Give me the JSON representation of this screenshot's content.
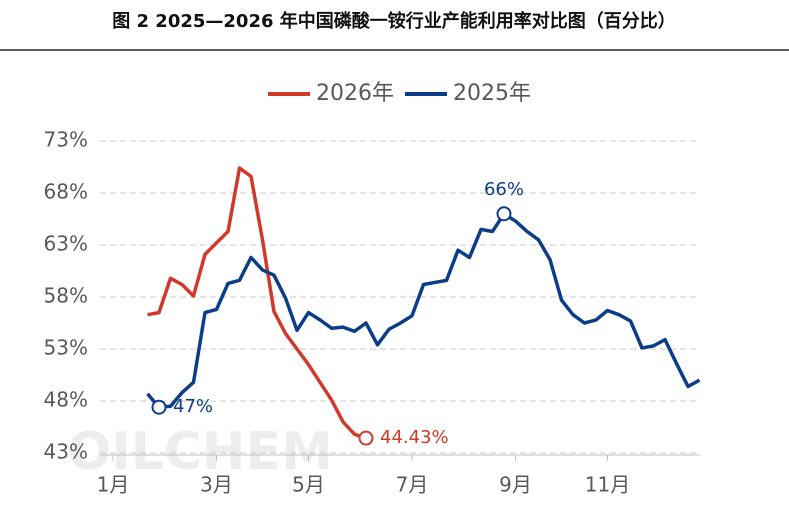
{
  "chart_data": {
    "type": "line",
    "title": "图 2 2025—2026 年中国磷酸一铵行业产能利用率对比图（百分比）",
    "watermark": "OILCHEM",
    "categories": [
      "1月",
      null,
      null,
      null,
      null,
      null,
      null,
      null,
      null,
      "3月",
      null,
      null,
      null,
      null,
      null,
      null,
      null,
      "5月",
      null,
      null,
      null,
      null,
      null,
      null,
      null,
      null,
      "7月",
      null,
      null,
      null,
      null,
      null,
      null,
      null,
      null,
      "9月",
      null,
      null,
      null,
      null,
      null,
      null,
      null,
      "11月",
      null,
      null,
      null,
      null,
      null,
      null,
      null,
      null
    ],
    "series": [
      {
        "name": "2026年",
        "color": "#d0392b",
        "values": [
          null,
          null,
          null,
          56.3,
          56.5,
          59.8,
          59.2,
          58.1,
          62.1,
          63.2,
          64.3,
          70.4,
          69.6,
          63.5,
          56.6,
          54.5,
          53.0,
          51.5,
          49.8,
          48.1,
          46.0,
          44.8,
          44.43,
          null,
          null,
          null,
          null,
          null,
          null,
          null,
          null,
          null,
          null,
          null,
          null,
          null,
          null,
          null,
          null,
          null,
          null,
          null,
          null,
          null,
          null,
          null,
          null,
          null,
          null,
          null,
          null,
          null
        ],
        "value_labels": [
          null,
          null,
          null,
          null,
          null,
          null,
          null,
          null,
          null,
          null,
          null,
          null,
          null,
          null,
          null,
          null,
          null,
          null,
          null,
          null,
          null,
          null,
          "44.43%",
          null,
          null,
          null,
          null,
          null,
          null,
          null,
          null,
          null,
          null,
          null,
          null,
          null,
          null,
          null,
          null,
          null,
          null,
          null,
          null,
          null,
          null,
          null,
          null,
          null,
          null,
          null,
          null,
          null
        ]
      },
      {
        "name": "2025年",
        "color": "#0d3d88",
        "values": [
          null,
          null,
          null,
          48.7,
          47.4,
          47.5,
          48.8,
          49.8,
          56.5,
          56.8,
          59.3,
          59.6,
          61.8,
          60.6,
          60.1,
          57.9,
          54.8,
          56.5,
          55.8,
          55.0,
          55.1,
          54.7,
          55.5,
          53.4,
          54.9,
          55.5,
          56.2,
          59.2,
          59.4,
          59.6,
          62.5,
          61.8,
          64.5,
          64.3,
          66.0,
          65.3,
          64.3,
          63.5,
          61.6,
          57.7,
          56.3,
          55.5,
          55.8,
          56.7,
          56.3,
          55.7,
          53.1,
          53.3,
          53.9,
          51.6,
          49.4,
          50.0
        ],
        "value_labels": [
          null,
          null,
          null,
          null,
          "47%",
          null,
          null,
          null,
          null,
          null,
          null,
          null,
          null,
          null,
          null,
          null,
          null,
          null,
          null,
          null,
          null,
          null,
          null,
          null,
          null,
          null,
          null,
          null,
          null,
          null,
          null,
          null,
          null,
          null,
          "66%",
          null,
          null,
          null,
          null,
          null,
          null,
          null,
          null,
          null,
          null,
          null,
          null,
          null,
          null,
          null,
          null,
          null
        ]
      }
    ],
    "ylim": [
      43,
      73
    ],
    "yticks": [
      {
        "value": 43,
        "label": "43%"
      },
      {
        "value": 48,
        "label": "48%"
      },
      {
        "value": 53,
        "label": "53%"
      },
      {
        "value": 58,
        "label": "58%"
      },
      {
        "value": 63,
        "label": "63%"
      },
      {
        "value": 68,
        "label": "68%"
      },
      {
        "value": 73,
        "label": "73%"
      }
    ],
    "grid": true,
    "legend": "top"
  }
}
